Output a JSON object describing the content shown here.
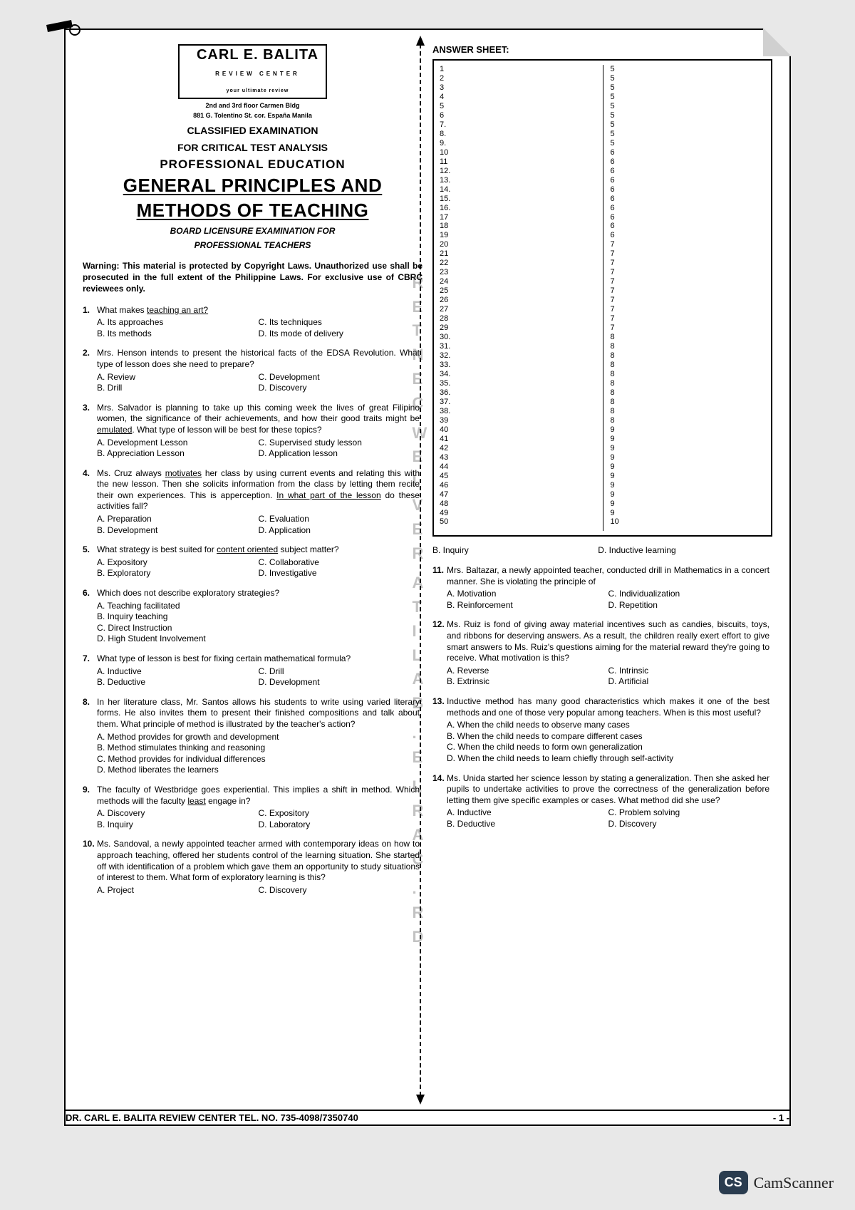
{
  "brand": {
    "name": "CARL E. BALITA",
    "sub1": "REVIEW CENTER",
    "sub2": "your ultimate review",
    "addr1": "2nd and 3rd floor Carmen Bldg",
    "addr2": "881 G. Tolentino St. cor. España Manila"
  },
  "header": {
    "line1": "CLASSIFIED EXAMINATION",
    "line2": "FOR CRITICAL TEST ANALYSIS",
    "profed": "PROFESSIONAL EDUCATION",
    "title1": "GENERAL PRINCIPLES AND",
    "title2": "METHODS OF TEACHING",
    "board1": "BOARD LICENSURE EXAMINATION FOR",
    "board2": "PROFESSIONAL TEACHERS"
  },
  "warning": "Warning: This material is protected by Copyright Laws. Unauthorized use shall be prosecuted in the full extent of the Philippine Laws. For exclusive use of CBRC reviewees only.",
  "questions_left": [
    {
      "n": "1.",
      "text": "What makes <span class='u'>teaching an art?</span>",
      "layout": "two",
      "opts": [
        "A.  Its approaches",
        "C.  Its techniques",
        "B.  Its methods",
        "D.  Its mode of delivery"
      ]
    },
    {
      "n": "2.",
      "text": "Mrs. Henson intends to present the historical facts of the EDSA Revolution. What type of lesson does she need to prepare?",
      "layout": "two",
      "opts": [
        "A.  Review",
        "C.  Development",
        "B.  Drill",
        "D.  Discovery"
      ]
    },
    {
      "n": "3.",
      "text": "Mrs. Salvador is planning to take up this coming week the lives of great Filipino women, the significance of their achievements, and how their good traits might be <span class='u'>emulated</span>. What type of lesson will be best for these topics?",
      "layout": "two",
      "opts": [
        "A.  Development Lesson",
        "C.  Supervised study lesson",
        "B.  Appreciation Lesson",
        "D.  Application lesson"
      ]
    },
    {
      "n": "4.",
      "text": "Ms. Cruz always <span class='u'>motivates</span> her class by using current events and relating this with the new lesson. Then she solicits information from the class by letting them recite their own experiences. This is apperception. <span class='u'>In what part of the lesson</span> do these activities fall?",
      "layout": "two",
      "opts": [
        "A.  Preparation",
        "C.  Evaluation",
        "B.  Development",
        "D.  Application"
      ]
    },
    {
      "n": "5.",
      "text": "What strategy is best suited for <span class='u'>content oriented</span> subject matter?",
      "layout": "two",
      "opts": [
        "A.  Expository",
        "C.  Collaborative",
        "B.  Exploratory",
        "D.  Investigative"
      ]
    },
    {
      "n": "6.",
      "text": "Which does not describe exploratory strategies?",
      "layout": "single",
      "opts": [
        "A.  Teaching facilitated",
        "B.  Inquiry teaching",
        "C.  Direct Instruction",
        "D.  High Student Involvement"
      ]
    },
    {
      "n": "7.",
      "text": "What type of lesson is best for fixing certain mathematical formula?",
      "layout": "two",
      "opts": [
        "A.  Inductive",
        "C.  Drill",
        "B.  Deductive",
        "D.  Development"
      ]
    },
    {
      "n": "8.",
      "text": "In her literature class, Mr. Santos allows his students to write using varied literary forms. He also invites them to present their finished compositions and talk about them. What principle of method is illustrated by the teacher's action?",
      "layout": "single",
      "opts": [
        "A.  Method provides for growth and development",
        "B.  Method stimulates thinking and reasoning",
        "C.  Method provides for individual differences",
        "D.  Method liberates the learners"
      ]
    },
    {
      "n": "9.",
      "text": "The faculty of Westbridge goes experiential. This implies a shift in method. Which methods will the faculty <span class='u'>least</span> engage in?",
      "layout": "two",
      "opts": [
        "A.  Discovery",
        "C.  Expository",
        "B.  Inquiry",
        "D.  Laboratory"
      ]
    },
    {
      "n": "10.",
      "text": "Ms. Sandoval, a newly appointed teacher armed with contemporary ideas on how to approach teaching, offered her students control of the learning situation. She started off with identification of a problem which gave them an opportunity to study situations of interest to them. What form of exploratory learning is this?",
      "layout": "two",
      "opts": [
        "A.  Project",
        "C.  Discovery",
        "",
        ""
      ]
    }
  ],
  "q10_extra": {
    "b": "B.  Inquiry",
    "d": "D.  Inductive learning"
  },
  "questions_right": [
    {
      "n": "11.",
      "text": "Mrs. Baltazar, a newly appointed teacher, conducted drill in Mathematics in a concert manner. She is violating the principle of",
      "layout": "two",
      "opts": [
        "A.  Motivation",
        "C.  Individualization",
        "B.  Reinforcement",
        "D.  Repetition"
      ]
    },
    {
      "n": "12.",
      "text": "Ms. Ruiz is fond of giving away material incentives such as candies, biscuits, toys, and ribbons for deserving answers. As a result, the children really exert effort to give smart answers to Ms. Ruiz's questions aiming for the material reward they're going to receive. What motivation is this?",
      "layout": "two",
      "opts": [
        "A.  Reverse",
        "C.  Intrinsic",
        "B.  Extrinsic",
        "D.  Artificial"
      ]
    },
    {
      "n": "13.",
      "text": "Inductive method has many good characteristics which makes it one of the best methods and one of those very popular among teachers. When is this most useful?",
      "layout": "single",
      "opts": [
        "A.  When the child needs to observe many cases",
        "B.  When the child needs to compare different cases",
        "C.  When the child needs to form own generalization",
        "D.  When the child needs to learn chiefly through self-activity"
      ]
    },
    {
      "n": "14.",
      "text": "Ms. Unida started her science lesson by stating a generalization. Then she asked her pupils to undertake activities to prove the correctness of the generalization before letting them give specific examples or cases. What method did she use?",
      "layout": "two",
      "opts": [
        "A.  Inductive",
        "C.  Problem solving",
        "B.  Deductive",
        "D.  Discovery"
      ]
    }
  ],
  "answer_sheet": {
    "title": "ANSWER SHEET:",
    "left_col": [
      {
        "n": "1",
        "v": ""
      },
      {
        "n": "2",
        "v": ""
      },
      {
        "n": "3",
        "v": ""
      },
      {
        "n": "4",
        "v": ""
      },
      {
        "n": "5",
        "v": ""
      },
      {
        "n": "6",
        "v": ""
      },
      {
        "n": "7.",
        "v": ""
      },
      {
        "n": "8.",
        "v": ""
      },
      {
        "n": "9.",
        "v": ""
      },
      {
        "n": "10",
        "v": ""
      },
      {
        "n": "11",
        "v": ""
      },
      {
        "n": "12.",
        "v": ""
      },
      {
        "n": "13.",
        "v": ""
      },
      {
        "n": "14.",
        "v": ""
      },
      {
        "n": "15.",
        "v": ""
      },
      {
        "n": "16.",
        "v": ""
      },
      {
        "n": "17",
        "v": ""
      },
      {
        "n": "18",
        "v": ""
      },
      {
        "n": "19",
        "v": ""
      },
      {
        "n": "20",
        "v": ""
      },
      {
        "n": "21",
        "v": ""
      },
      {
        "n": "22",
        "v": ""
      },
      {
        "n": "23",
        "v": ""
      },
      {
        "n": "24",
        "v": ""
      },
      {
        "n": "25",
        "v": ""
      },
      {
        "n": "26",
        "v": ""
      },
      {
        "n": "27",
        "v": ""
      },
      {
        "n": "28",
        "v": ""
      },
      {
        "n": "29",
        "v": ""
      },
      {
        "n": "30.",
        "v": ""
      },
      {
        "n": "31.",
        "v": ""
      },
      {
        "n": "32.",
        "v": ""
      },
      {
        "n": "33.",
        "v": ""
      },
      {
        "n": "34.",
        "v": ""
      },
      {
        "n": "35.",
        "v": ""
      },
      {
        "n": "36.",
        "v": ""
      },
      {
        "n": "37.",
        "v": ""
      },
      {
        "n": "38.",
        "v": ""
      },
      {
        "n": "39",
        "v": ""
      },
      {
        "n": "40",
        "v": ""
      },
      {
        "n": "41",
        "v": ""
      },
      {
        "n": "42",
        "v": ""
      },
      {
        "n": "43",
        "v": ""
      },
      {
        "n": "44",
        "v": ""
      },
      {
        "n": "45",
        "v": ""
      },
      {
        "n": "46",
        "v": ""
      },
      {
        "n": "47",
        "v": ""
      },
      {
        "n": "48",
        "v": ""
      },
      {
        "n": "49",
        "v": ""
      },
      {
        "n": "50",
        "v": ""
      }
    ],
    "right_col": [
      {
        "n": "5",
        "v": ""
      },
      {
        "n": "5",
        "v": ""
      },
      {
        "n": "5",
        "v": ""
      },
      {
        "n": "5",
        "v": ""
      },
      {
        "n": "5",
        "v": ""
      },
      {
        "n": "5",
        "v": ""
      },
      {
        "n": "5",
        "v": ""
      },
      {
        "n": "5",
        "v": ""
      },
      {
        "n": "5",
        "v": ""
      },
      {
        "n": "6",
        "v": ""
      },
      {
        "n": "6",
        "v": ""
      },
      {
        "n": "6",
        "v": ""
      },
      {
        "n": "6",
        "v": ""
      },
      {
        "n": "6",
        "v": ""
      },
      {
        "n": "6",
        "v": ""
      },
      {
        "n": "6",
        "v": ""
      },
      {
        "n": "6",
        "v": ""
      },
      {
        "n": "6",
        "v": ""
      },
      {
        "n": "6",
        "v": ""
      },
      {
        "n": "7",
        "v": ""
      },
      {
        "n": "7",
        "v": ""
      },
      {
        "n": "7",
        "v": ""
      },
      {
        "n": "7",
        "v": ""
      },
      {
        "n": "7",
        "v": ""
      },
      {
        "n": "7",
        "v": ""
      },
      {
        "n": "7",
        "v": ""
      },
      {
        "n": "7",
        "v": ""
      },
      {
        "n": "7",
        "v": ""
      },
      {
        "n": "7",
        "v": ""
      },
      {
        "n": "8",
        "v": ""
      },
      {
        "n": "8",
        "v": ""
      },
      {
        "n": "8",
        "v": ""
      },
      {
        "n": "8",
        "v": ""
      },
      {
        "n": "8",
        "v": ""
      },
      {
        "n": "8",
        "v": ""
      },
      {
        "n": "8",
        "v": ""
      },
      {
        "n": "8",
        "v": ""
      },
      {
        "n": "8",
        "v": ""
      },
      {
        "n": "8",
        "v": ""
      },
      {
        "n": "9",
        "v": ""
      },
      {
        "n": "9",
        "v": ""
      },
      {
        "n": "9",
        "v": ""
      },
      {
        "n": "9",
        "v": ""
      },
      {
        "n": "9",
        "v": ""
      },
      {
        "n": "9",
        "v": ""
      },
      {
        "n": "9",
        "v": ""
      },
      {
        "n": "9",
        "v": ""
      },
      {
        "n": "9",
        "v": ""
      },
      {
        "n": "9",
        "v": ""
      },
      {
        "n": "10",
        "v": ""
      }
    ]
  },
  "footer": {
    "left": "DR. CARL E. BALITA REVIEW CENTER TEL. NO. 735-4098/7350740",
    "right": "- 1 -"
  },
  "camscanner": "CamScanner",
  "watermark_text": "DR. CARL E. BALITA REVIEW CENTER"
}
